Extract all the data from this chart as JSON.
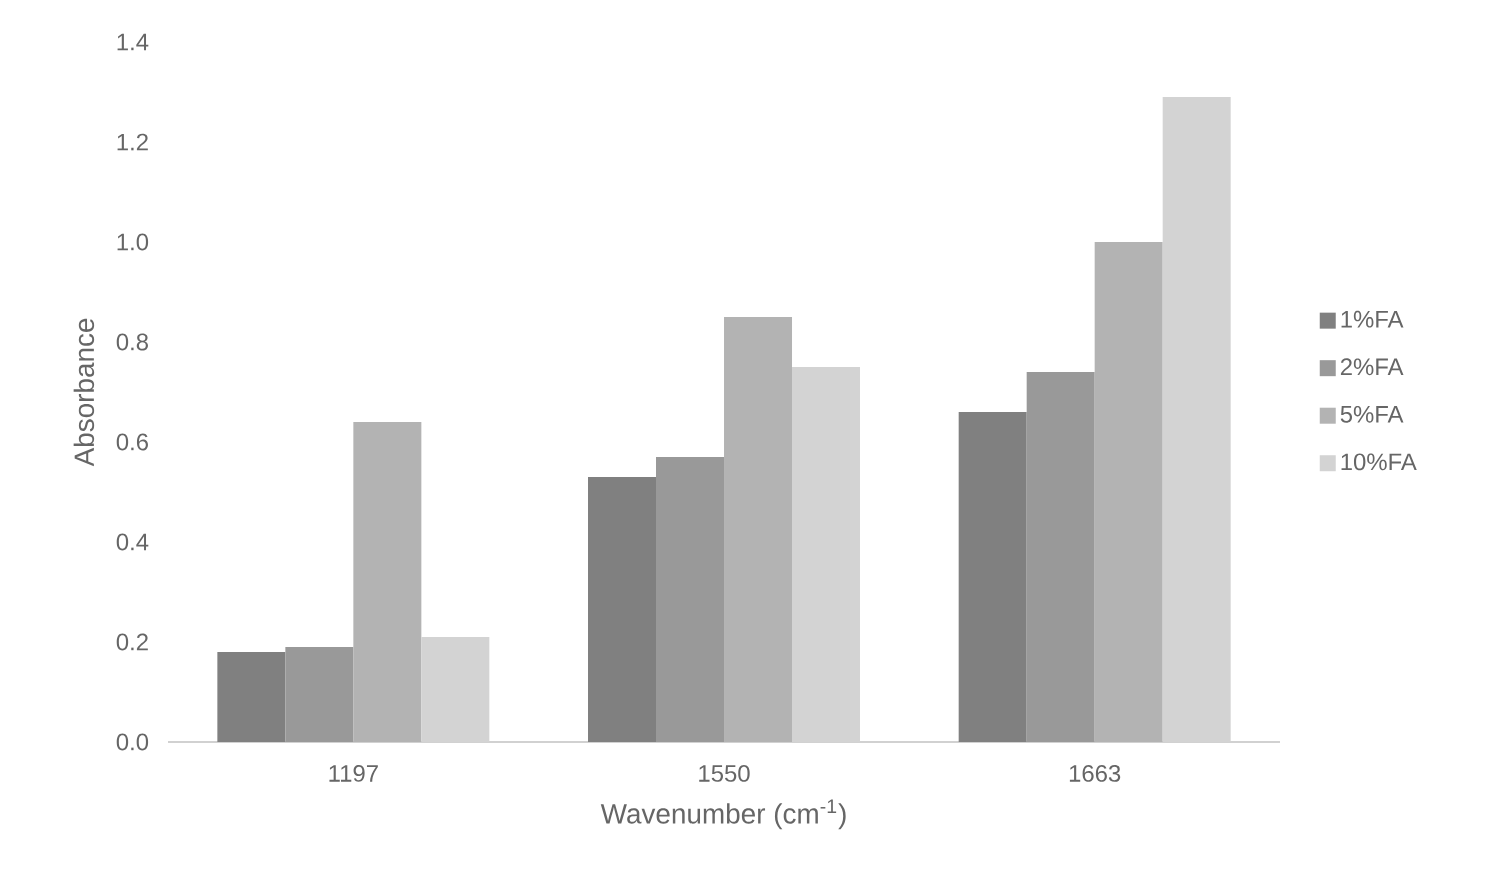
{
  "chart_data": {
    "type": "bar",
    "xlabel": "Wavenumber (cm$^{-1}$)",
    "ylabel": "Absorbance",
    "categories": [
      "1197",
      "1550",
      "1663"
    ],
    "series": [
      {
        "name": "1%FA",
        "color": "#808080",
        "values": [
          0.18,
          0.53,
          0.66
        ]
      },
      {
        "name": "2%FA",
        "color": "#999999",
        "values": [
          0.19,
          0.57,
          0.74
        ]
      },
      {
        "name": "5%FA",
        "color": "#b3b3b3",
        "values": [
          0.64,
          0.85,
          1.0
        ]
      },
      {
        "name": "10%FA",
        "color": "#d3d3d3",
        "values": [
          0.21,
          0.75,
          1.29
        ]
      }
    ],
    "ylim": [
      0,
      1.4
    ],
    "yticks": [
      {
        "value": 0,
        "label": "0.0"
      },
      {
        "value": 0.2,
        "label": "0.2"
      },
      {
        "value": 0.4,
        "label": "0.4"
      },
      {
        "value": 0.6,
        "label": "0.6"
      },
      {
        "value": 0.8,
        "label": "0.8"
      },
      {
        "value": 1.0,
        "label": "1.0"
      },
      {
        "value": 1.2,
        "label": "1.2"
      },
      {
        "value": 1.4,
        "label": "1.4"
      }
    ],
    "grid": false,
    "legend": "right"
  }
}
